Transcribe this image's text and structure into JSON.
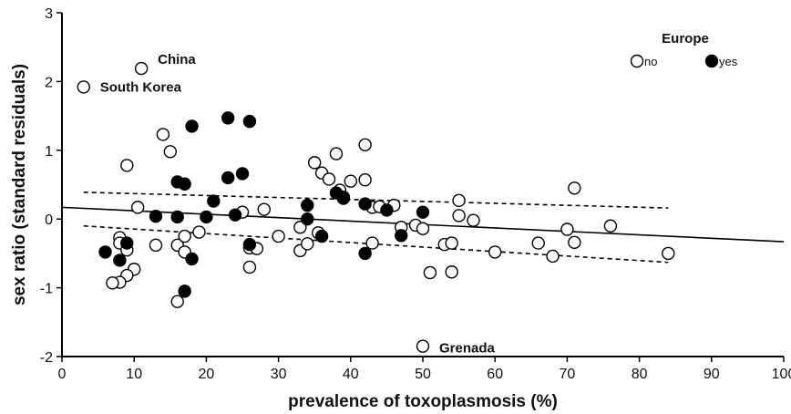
{
  "chart_data": {
    "type": "scatter",
    "xlabel": "prevalence of toxoplasmosis (%)",
    "ylabel": "sex ratio (standard residuals)",
    "xlim": [
      0,
      100
    ],
    "ylim": [
      -2,
      3
    ],
    "x_ticks": [
      "0",
      "10",
      "20",
      "30",
      "40",
      "50",
      "60",
      "70",
      "80",
      "90",
      "100"
    ],
    "y_ticks": [
      "-2",
      "-1",
      "0",
      "1",
      "2",
      "3"
    ],
    "grid": false,
    "legend": {
      "title": "Europe",
      "placement": "top-right",
      "entries": [
        {
          "label": "no",
          "filled": false
        },
        {
          "label": "yes",
          "filled": true
        }
      ]
    },
    "series": [
      {
        "name": "no",
        "filled": false,
        "points": [
          [
            3,
            1.92
          ],
          [
            11,
            2.19
          ],
          [
            9,
            0.78
          ],
          [
            10.5,
            0.17
          ],
          [
            13,
            -0.38
          ],
          [
            14,
            1.23
          ],
          [
            15,
            0.98
          ],
          [
            16,
            -0.38
          ],
          [
            16,
            -1.2
          ],
          [
            17,
            -0.25
          ],
          [
            17,
            -0.48
          ],
          [
            19,
            -0.19
          ],
          [
            8,
            -0.27
          ],
          [
            8,
            -0.35
          ],
          [
            9,
            -0.45
          ],
          [
            10,
            -0.73
          ],
          [
            9,
            -0.82
          ],
          [
            8,
            -0.92
          ],
          [
            7,
            -0.93
          ],
          [
            25,
            0.1
          ],
          [
            26,
            -0.42
          ],
          [
            26,
            -0.7
          ],
          [
            27,
            -0.43
          ],
          [
            28,
            0.14
          ],
          [
            30,
            -0.25
          ],
          [
            33,
            -0.46
          ],
          [
            33,
            -0.12
          ],
          [
            34,
            -0.36
          ],
          [
            35,
            0.82
          ],
          [
            35.5,
            -0.2
          ],
          [
            36,
            0.67
          ],
          [
            37,
            0.58
          ],
          [
            38,
            0.95
          ],
          [
            38.5,
            0.42
          ],
          [
            39,
            0.32
          ],
          [
            40,
            0.55
          ],
          [
            42,
            1.08
          ],
          [
            42,
            0.57
          ],
          [
            43,
            0.17
          ],
          [
            43,
            -0.35
          ],
          [
            44,
            0.18
          ],
          [
            46,
            0.2
          ],
          [
            47,
            -0.12
          ],
          [
            49,
            -0.09
          ],
          [
            50,
            -0.14
          ],
          [
            51,
            -0.78
          ],
          [
            53,
            -0.37
          ],
          [
            54,
            -0.77
          ],
          [
            54,
            -0.35
          ],
          [
            55,
            0.27
          ],
          [
            55,
            0.05
          ],
          [
            57,
            -0.02
          ],
          [
            60,
            -0.48
          ],
          [
            66,
            -0.35
          ],
          [
            68,
            -0.54
          ],
          [
            70,
            -0.15
          ],
          [
            71,
            -0.34
          ],
          [
            71,
            0.45
          ],
          [
            76,
            -0.1
          ],
          [
            84,
            -0.5
          ],
          [
            50,
            -1.85
          ]
        ]
      },
      {
        "name": "yes",
        "filled": true,
        "points": [
          [
            6,
            -0.48
          ],
          [
            8,
            -0.6
          ],
          [
            9,
            -0.35
          ],
          [
            13,
            0.04
          ],
          [
            16,
            0.54
          ],
          [
            16,
            0.03
          ],
          [
            17,
            0.51
          ],
          [
            17,
            -1.05
          ],
          [
            18,
            1.35
          ],
          [
            18,
            -0.58
          ],
          [
            20,
            0.03
          ],
          [
            21,
            0.26
          ],
          [
            23,
            1.47
          ],
          [
            23,
            0.6
          ],
          [
            24,
            0.06
          ],
          [
            25,
            0.66
          ],
          [
            26,
            1.42
          ],
          [
            26,
            -0.37
          ],
          [
            34,
            0.2
          ],
          [
            34,
            0.0
          ],
          [
            36,
            -0.25
          ],
          [
            38,
            0.38
          ],
          [
            39,
            0.3
          ],
          [
            42,
            0.22
          ],
          [
            42,
            -0.5
          ],
          [
            45,
            0.13
          ],
          [
            47,
            -0.24
          ],
          [
            50,
            0.1
          ]
        ]
      }
    ],
    "regression": {
      "x": [
        0,
        100
      ],
      "y": [
        0.17,
        -0.33
      ],
      "ci_upper": {
        "x": [
          3,
          84
        ],
        "y": [
          0.39,
          0.16
        ]
      },
      "ci_lower": {
        "x": [
          3,
          84
        ],
        "y": [
          -0.1,
          -0.63
        ]
      }
    },
    "annotations": [
      {
        "text": "China",
        "x": 11,
        "y": 2.19
      },
      {
        "text": "South Korea",
        "x": 3,
        "y": 1.92
      },
      {
        "text": "Grenada",
        "x": 50,
        "y": -1.85
      }
    ]
  }
}
